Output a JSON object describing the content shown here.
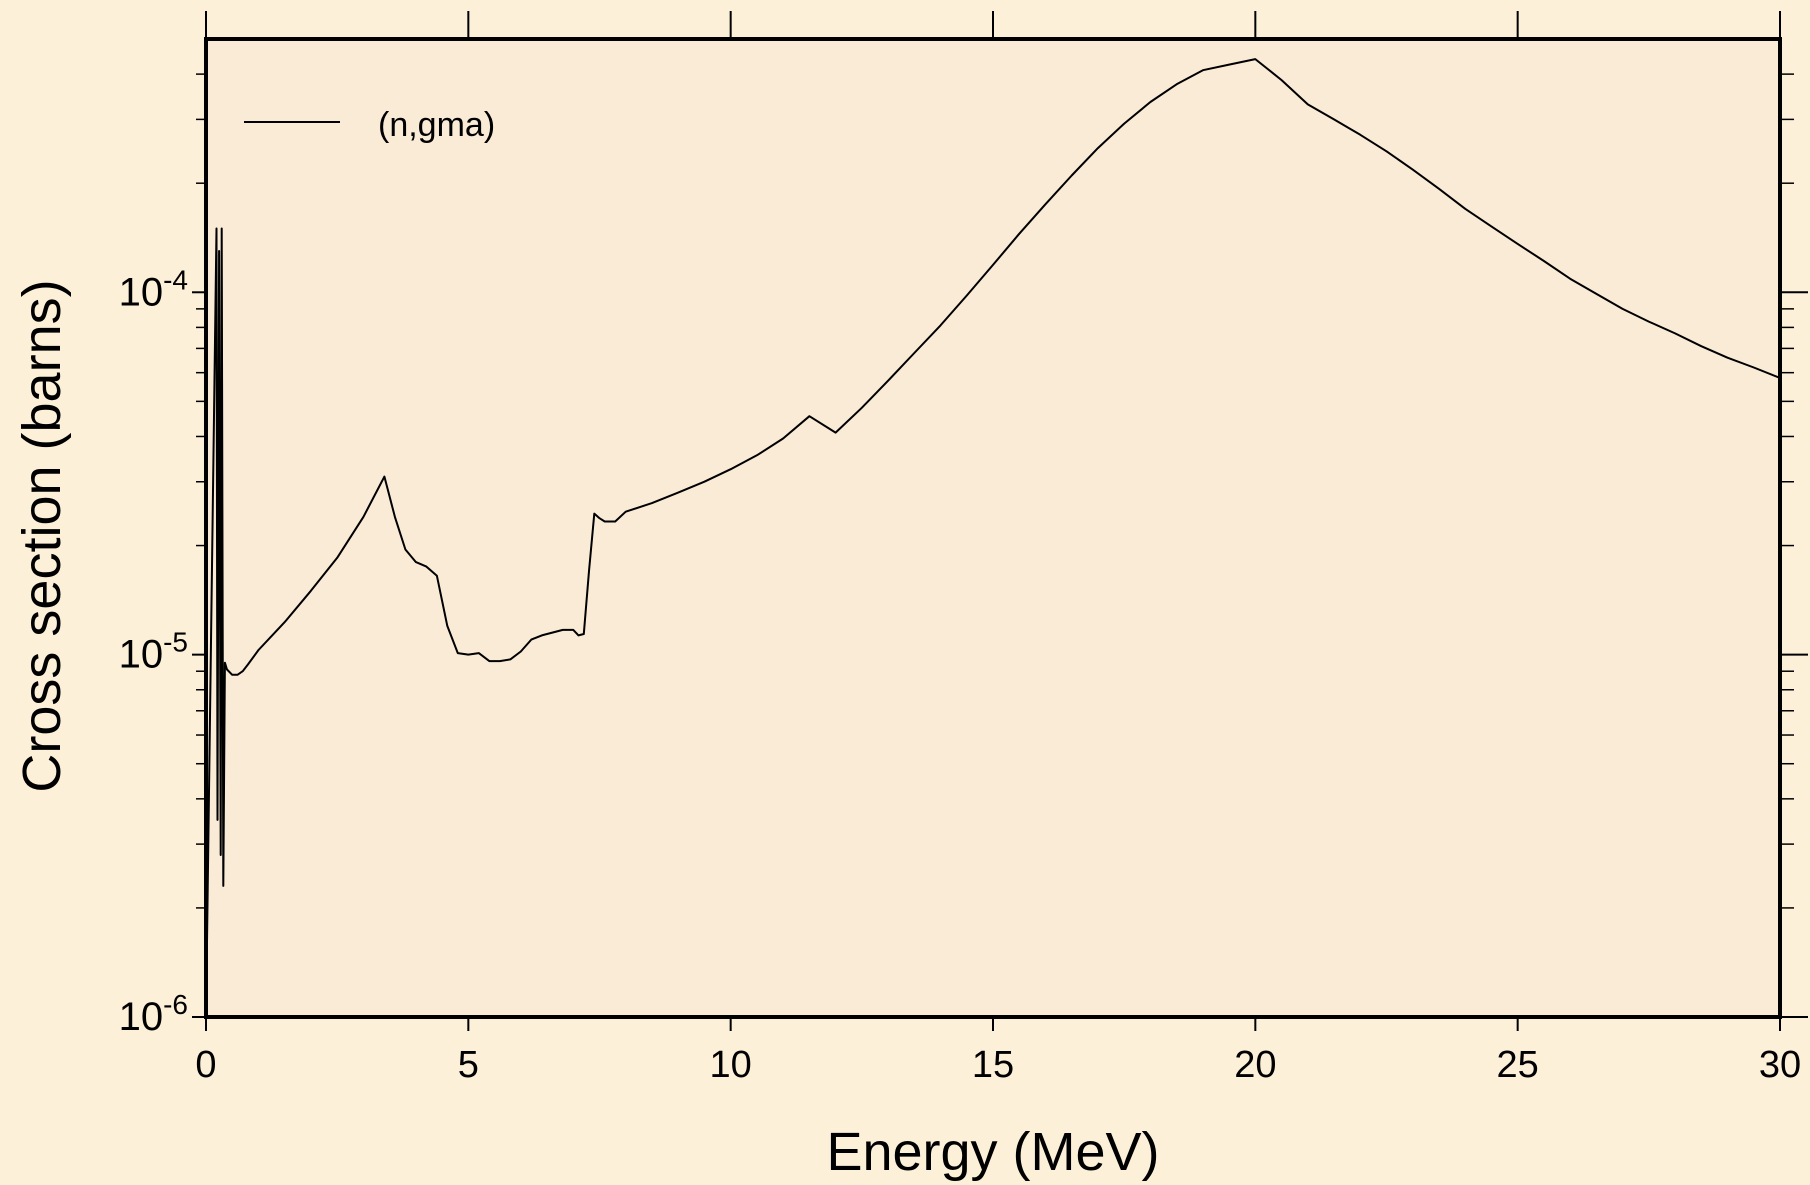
{
  "chart_data": {
    "type": "line",
    "xlabel": "Energy (MeV)",
    "ylabel": "Cross section (barns)",
    "x_scale": "linear",
    "y_scale": "log",
    "xlim": [
      0,
      30
    ],
    "ylim": [
      1e-06,
      0.0005
    ],
    "x_ticks": [
      "0",
      "5",
      "10",
      "15",
      "20",
      "25",
      "30"
    ],
    "y_ticks": [
      {
        "base": "10",
        "exp": "-6",
        "value": 1e-06
      },
      {
        "base": "10",
        "exp": "-5",
        "value": 1e-05
      },
      {
        "base": "10",
        "exp": "-4",
        "value": 0.0001
      }
    ],
    "grid": false,
    "legend_position": "top-left",
    "plot_background": "#faebd7",
    "figure_background": "#fcf0d8",
    "line_color": "#000000",
    "series": [
      {
        "name": "(n,gma)",
        "x": [
          0.0,
          0.2,
          0.22,
          0.25,
          0.28,
          0.3,
          0.33,
          0.36,
          0.4,
          0.5,
          0.6,
          0.7,
          0.8,
          1.0,
          1.5,
          2.0,
          2.5,
          3.0,
          3.4,
          3.6,
          3.8,
          4.0,
          4.2,
          4.4,
          4.6,
          4.8,
          5.0,
          5.2,
          5.4,
          5.6,
          5.8,
          6.0,
          6.2,
          6.4,
          6.6,
          6.8,
          7.0,
          7.1,
          7.2,
          7.3,
          7.4,
          7.5,
          7.6,
          7.8,
          8.0,
          8.5,
          9.0,
          9.5,
          10.0,
          10.5,
          11.0,
          11.5,
          12.0,
          12.5,
          13.0,
          13.5,
          14.0,
          14.5,
          15.0,
          15.5,
          16.0,
          16.5,
          17.0,
          17.5,
          18.0,
          18.5,
          19.0,
          19.5,
          20.0,
          20.5,
          21.0,
          21.5,
          22.0,
          22.5,
          23.0,
          23.5,
          24.0,
          24.5,
          25.0,
          25.5,
          26.0,
          26.5,
          27.0,
          27.5,
          28.0,
          28.5,
          29.0,
          29.5,
          30.0
        ],
        "y": [
          1e-06,
          0.00015,
          3.5e-06,
          0.00013,
          2.8e-06,
          0.00015,
          2.3e-06,
          9.5e-06,
          9.1e-06,
          8.8e-06,
          8.8e-06,
          9e-06,
          9.4e-06,
          1.03e-05,
          1.23e-05,
          1.5e-05,
          1.85e-05,
          2.4e-05,
          3.1e-05,
          2.4e-05,
          1.95e-05,
          1.8e-05,
          1.75e-05,
          1.65e-05,
          1.2e-05,
          1.01e-05,
          1e-05,
          1.01e-05,
          9.6e-06,
          9.6e-06,
          9.7e-06,
          1.02e-05,
          1.1e-05,
          1.13e-05,
          1.15e-05,
          1.17e-05,
          1.17e-05,
          1.13e-05,
          1.14e-05,
          1.7e-05,
          2.45e-05,
          2.38e-05,
          2.33e-05,
          2.33e-05,
          2.48e-05,
          2.62e-05,
          2.8e-05,
          3e-05,
          3.25e-05,
          3.55e-05,
          3.95e-05,
          4.55e-05,
          4.1e-05,
          4.8e-05,
          5.7e-05,
          6.8e-05,
          8.1e-05,
          9.8e-05,
          0.000119,
          0.000145,
          0.000175,
          0.00021,
          0.00025,
          0.000292,
          0.000335,
          0.000375,
          0.00041,
          0.000425,
          0.00044,
          0.000385,
          0.00033,
          0.0003,
          0.000272,
          0.000245,
          0.000218,
          0.000193,
          0.00017,
          0.000152,
          0.000136,
          0.000122,
          0.000109,
          9.9e-05,
          9e-05,
          8.3e-05,
          7.7e-05,
          7.1e-05,
          6.6e-05,
          6.2e-05,
          5.8e-05
        ]
      }
    ]
  }
}
